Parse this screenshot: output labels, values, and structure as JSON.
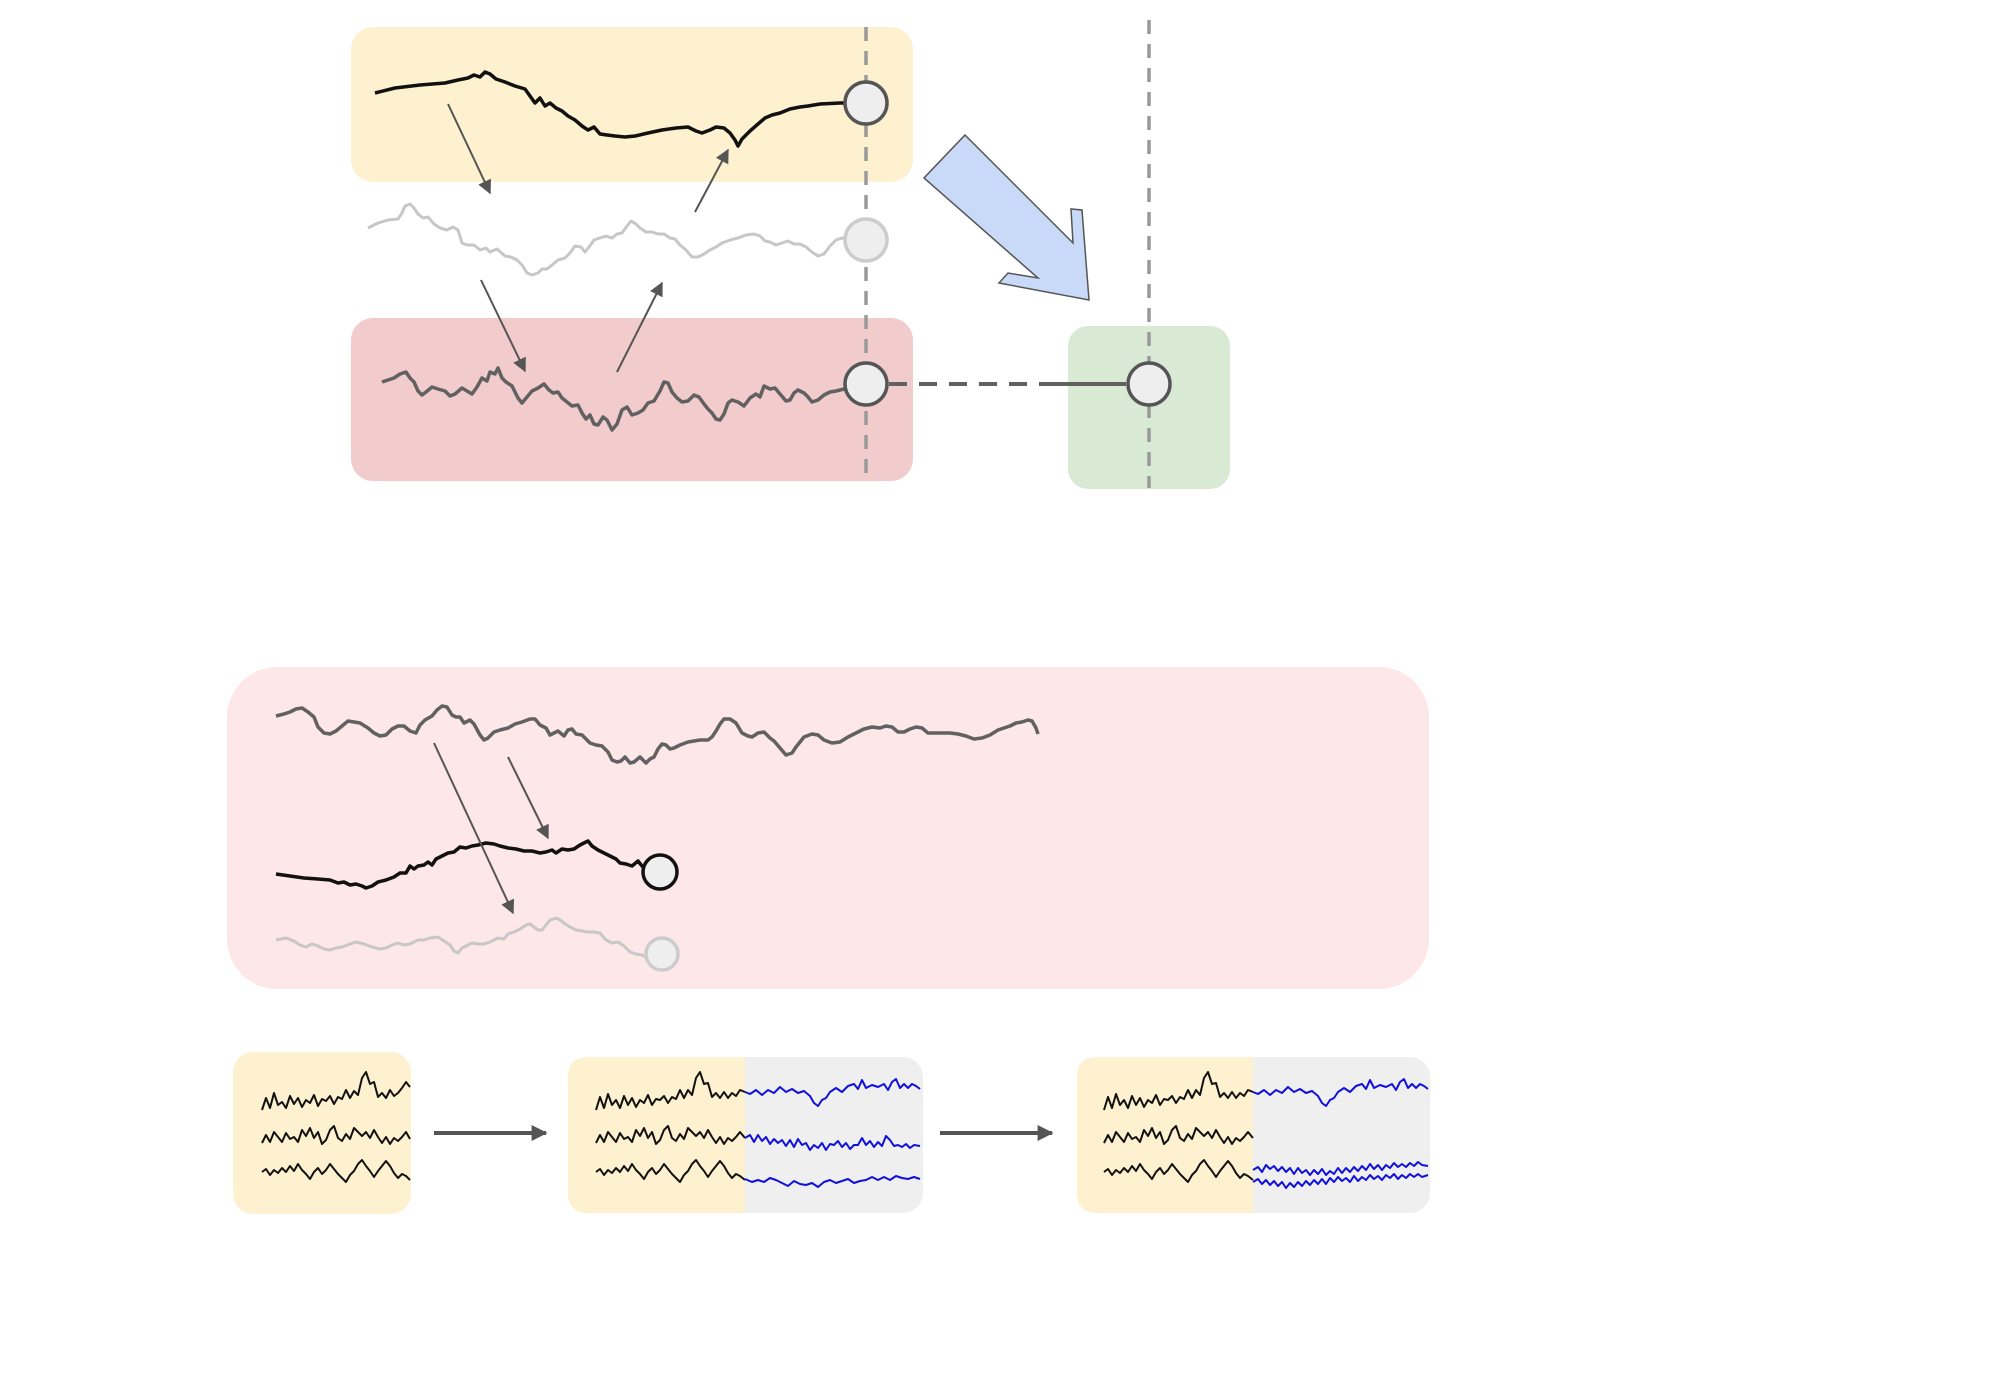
{
  "colors": {
    "yellow_panel": "#fdf1cf",
    "red_panel": "#f2cbcc",
    "green_panel": "#d9ead4",
    "pink_panel": "#fde7e8",
    "grey_panel": "#efefef",
    "blue_arrow": "#c9daf8",
    "dark_line": "#111111",
    "mid_line": "#616161",
    "faint_line": "#c7c7c7",
    "forecast_line": "#1010dd",
    "node_fill": "#eeeeee",
    "node_stroke": "#555555",
    "guide_dash": "#999999"
  },
  "icons": {
    "node": "circle-node-icon",
    "big_arrow": "large-diagonal-arrow-icon",
    "flow_arrow": "right-arrow-icon"
  }
}
